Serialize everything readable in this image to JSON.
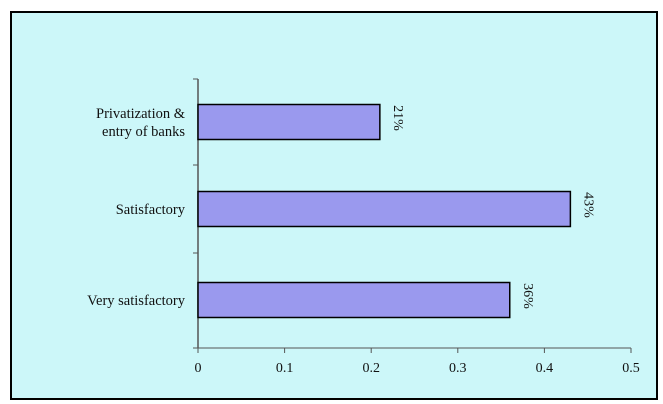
{
  "heading": "",
  "chart_data": {
    "type": "bar",
    "orientation": "horizontal",
    "categories": [
      [
        "Privatization &",
        "entry of banks"
      ],
      [
        "Satisfactory"
      ],
      [
        "Very satisfactory"
      ]
    ],
    "values": [
      0.21,
      0.43,
      0.36
    ],
    "data_labels": [
      "21%",
      "43%",
      "36%"
    ],
    "x_ticks": [
      "0",
      "0.1",
      "0.2",
      "0.3",
      "0.4",
      "0.5"
    ],
    "xlim": [
      0,
      0.5
    ],
    "grid": false,
    "legend": "none",
    "title": "",
    "xlabel": "",
    "ylabel": "",
    "colors": {
      "bar_fill": "#9a99ee",
      "bar_stroke": "#000000",
      "plot_background": "#ccf7f9",
      "axis": "#555555"
    }
  }
}
